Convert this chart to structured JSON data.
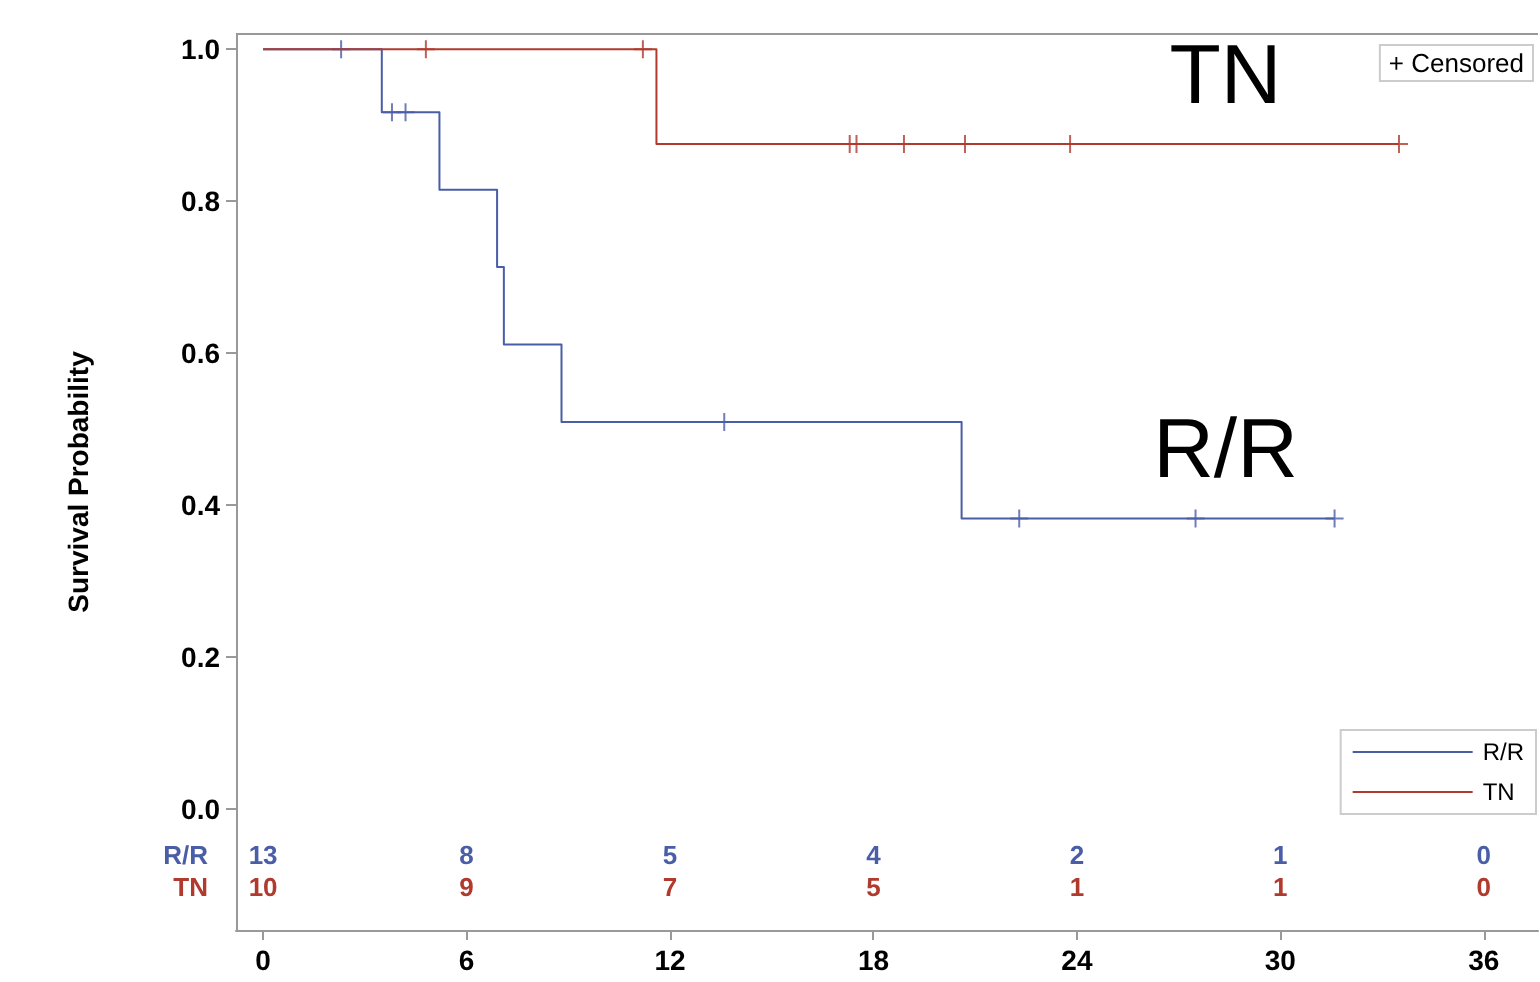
{
  "chart_data": {
    "type": "step",
    "ylabel": "Survival Probability",
    "xlim": [
      -0.8,
      37.6
    ],
    "xticks": [
      0,
      6,
      12,
      18,
      24,
      30,
      36
    ],
    "ylim": [
      -0.16,
      1.02
    ],
    "yticks": [
      {
        "value": 0,
        "label": "0.0"
      },
      {
        "value": 0.2,
        "label": "0.2"
      },
      {
        "value": 0.4,
        "label": "0.4"
      },
      {
        "value": 0.6,
        "label": "0.6"
      },
      {
        "value": 0.8,
        "label": "0.8"
      },
      {
        "value": 1,
        "label": "1.0"
      }
    ],
    "grid": false,
    "legend": "bottom right",
    "line_style": "solid",
    "series": [
      {
        "name": "R/R",
        "color": "#4a5ea8",
        "marker": "none",
        "x": [
          0,
          3.5,
          5.2,
          6.9,
          7.1,
          8.8,
          20.6,
          31.6
        ],
        "values": [
          1,
          0.917,
          0.815,
          0.713,
          0.611,
          0.509,
          0.382,
          0.382
        ]
      },
      {
        "name": "TN",
        "color": "#b03a2e",
        "marker": "none",
        "x": [
          0,
          11.6,
          33.5
        ],
        "values": [
          1,
          0.875,
          0.875
        ]
      },
      {
        "type": "scatter",
        "color": "#4a5ea8",
        "marker": "cross",
        "x": [
          2.3,
          3.8,
          4.2,
          13.6,
          22.3,
          27.5,
          31.6
        ],
        "values": [
          1,
          0.917,
          0.917,
          0.509,
          0.382,
          0.382,
          0.382
        ]
      },
      {
        "type": "scatter",
        "color": "#b03a2e",
        "marker": "cross",
        "x": [
          4.8,
          11.2,
          17.3,
          17.5,
          18.9,
          20.7,
          23.8,
          33.5
        ],
        "values": [
          1,
          1,
          0.875,
          0.875,
          0.875,
          0.875,
          0.875,
          0.875
        ]
      }
    ],
    "annotations": [
      "+ Censored",
      "R/R",
      "TN",
      "13",
      "8",
      "5",
      "4",
      "2",
      "1",
      "0",
      "10",
      "9",
      "7",
      "5",
      "1",
      "1",
      "0"
    ]
  }
}
